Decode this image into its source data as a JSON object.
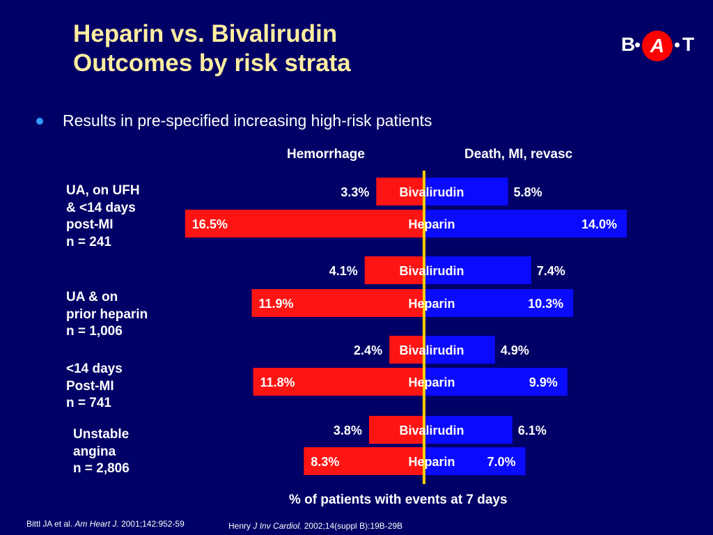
{
  "title_line1": "Heparin vs. Bivalirudin",
  "title_line2": "Outcomes by risk strata",
  "logo": {
    "b": "B",
    "a": "A",
    "t": "T"
  },
  "bullet": "Results in pre-specified increasing high-risk patients",
  "xlabel": "% of patients with events at 7 days",
  "references": {
    "left_author": "Bittl JA et al.",
    "left_journal": "Am Heart J.",
    "left_citation": "2001;142:952-59",
    "right_author": "Henry",
    "right_journal": "J Inv Cardiol.",
    "right_citation": "2002;14(suppl B):19B-29B"
  },
  "colors": {
    "background": "#000066",
    "title": "#ffeea0",
    "hemorrhage": "#ff1414",
    "death_mi_revasc": "#0a0aff",
    "center_axis": "#ffcc00",
    "bullet": "#3399ff"
  },
  "chart_data": {
    "type": "bar",
    "orientation": "horizontal-diverging",
    "left_measure": "Hemorrhage",
    "right_measure": "Death, MI, revasc",
    "units": "percent",
    "groups": [
      {
        "lines": [
          "UA, on UFH",
          "& <14 days",
          "post-MI",
          "n = 241"
        ],
        "bars": [
          {
            "drug": "Bivalirudin",
            "hemorrhage": 3.3,
            "death_mi_revasc": 5.8
          },
          {
            "drug": "Heparin",
            "hemorrhage": 16.5,
            "death_mi_revasc": 14.0
          }
        ]
      },
      {
        "lines": [
          "UA & on",
          "prior heparin",
          "n = 1,006"
        ],
        "bars": [
          {
            "drug": "Bivalirudin",
            "hemorrhage": 4.1,
            "death_mi_revasc": 7.4
          },
          {
            "drug": "Heparin",
            "hemorrhage": 11.9,
            "death_mi_revasc": 10.3
          }
        ]
      },
      {
        "lines": [
          "<14 days",
          "Post-MI",
          "n = 741"
        ],
        "bars": [
          {
            "drug": "Bivalirudin",
            "hemorrhage": 2.4,
            "death_mi_revasc": 4.9
          },
          {
            "drug": "Heparin",
            "hemorrhage": 11.8,
            "death_mi_revasc": 9.9
          }
        ]
      },
      {
        "lines": [
          "Unstable",
          "angina",
          "n = 2,806"
        ],
        "bars": [
          {
            "drug": "Bivalirudin",
            "hemorrhage": 3.8,
            "death_mi_revasc": 6.1
          },
          {
            "drug": "Heparin",
            "hemorrhage": 8.3,
            "death_mi_revasc": 7.0
          }
        ]
      }
    ]
  }
}
